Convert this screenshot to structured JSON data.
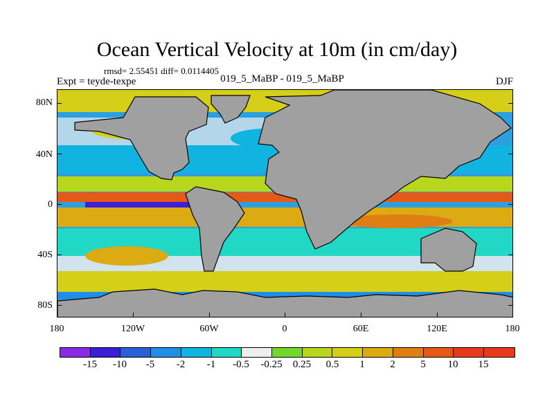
{
  "figure": {
    "title": "Ocean Vertical Velocity at 10m (in cm/day)",
    "stats": "rmsd= 2.55451 diff= 0.0114405",
    "experiment_label": "Expt = teyde-texpe",
    "runs_label": "019_5_MaBP - 019_5_MaBP",
    "season": "DJF"
  },
  "map": {
    "latitude_labels": [
      "80N",
      "40N",
      "0",
      "40S",
      "80S"
    ],
    "longitude_labels": [
      "180",
      "120W",
      "60W",
      "0",
      "60E",
      "120E",
      "180"
    ],
    "land_color": "#a0a0a0",
    "coast_color": "#000000"
  },
  "colorbar": {
    "colors": [
      "#8a2be2",
      "#3a1fd6",
      "#2a5fd8",
      "#1e8ee6",
      "#11b4e0",
      "#21d7c5",
      "#eeeeee",
      "#72d92b",
      "#b8d61c",
      "#d6cf19",
      "#dcaa12",
      "#df7e12",
      "#e65a17",
      "#e63a1b"
    ],
    "labels": [
      "-15",
      "-10",
      "-5",
      "-2",
      "-1",
      "-0.5",
      "-0.25",
      "0.25",
      "0.5",
      "1",
      "2",
      "5",
      "10",
      "15"
    ]
  }
}
